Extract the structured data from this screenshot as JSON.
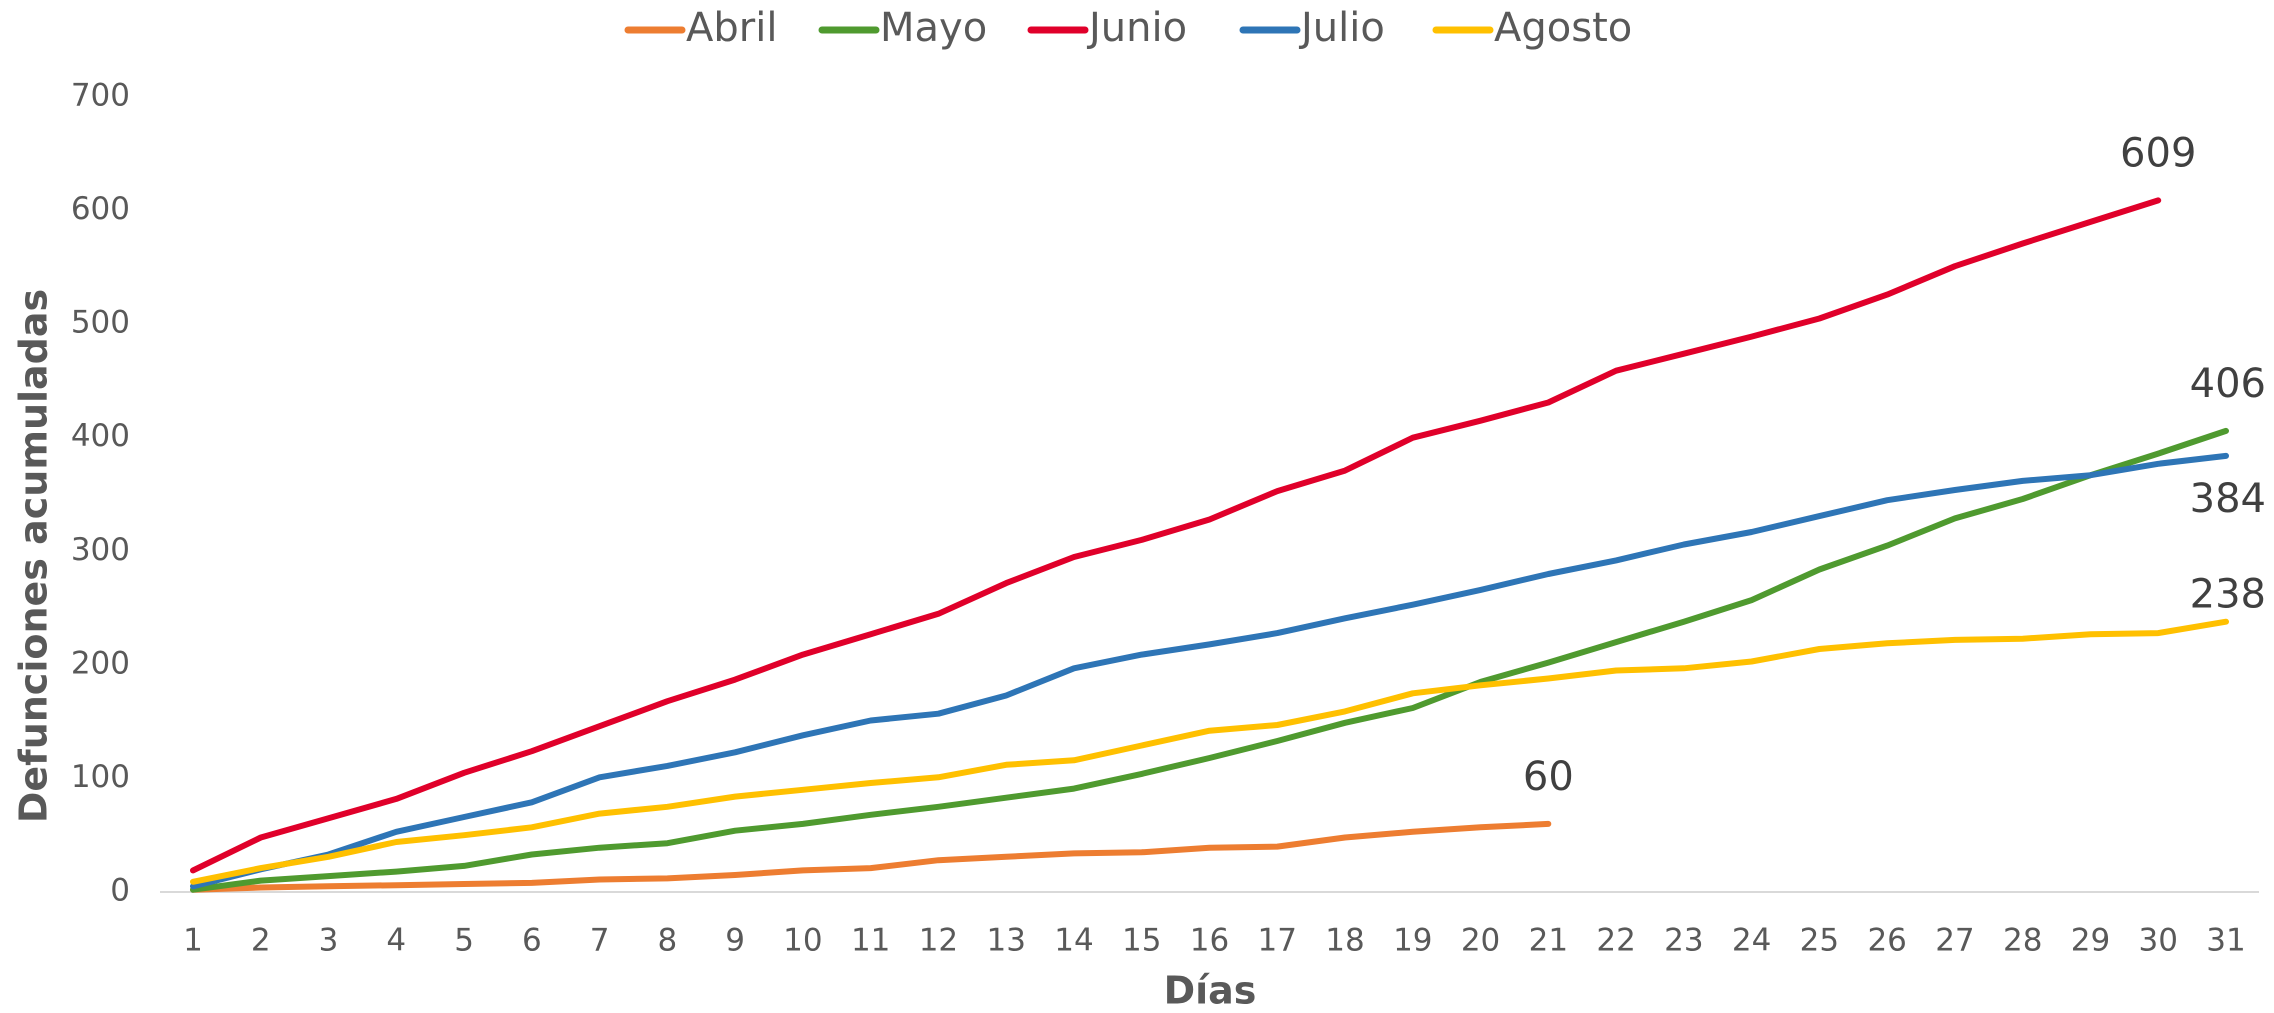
{
  "chart_data": {
    "type": "line",
    "xlabel": "Días",
    "ylabel": "Defunciones acumuladas",
    "categories": [
      1,
      2,
      3,
      4,
      5,
      6,
      7,
      8,
      9,
      10,
      11,
      12,
      13,
      14,
      15,
      16,
      17,
      18,
      19,
      20,
      21,
      22,
      23,
      24,
      25,
      26,
      27,
      28,
      29,
      30,
      31
    ],
    "ylim": [
      0,
      700
    ],
    "yticks": [
      0,
      100,
      200,
      300,
      400,
      500,
      600,
      700
    ],
    "legend": "top",
    "grid": false,
    "series": [
      {
        "name": "Abril",
        "color": "#ed7d31",
        "values": [
          2,
          4,
          5,
          6,
          7,
          8,
          11,
          12,
          15,
          19,
          21,
          28,
          31,
          34,
          35,
          39,
          40,
          48,
          53,
          57,
          60,
          null,
          null,
          null,
          null,
          null,
          null,
          null,
          null,
          null,
          null
        ]
      },
      {
        "name": "Mayo",
        "color": "#4f9a2f",
        "values": [
          2,
          10,
          14,
          18,
          23,
          33,
          39,
          43,
          54,
          60,
          68,
          75,
          83,
          91,
          104,
          118,
          133,
          149,
          162,
          185,
          202,
          220,
          238,
          257,
          284,
          305,
          329,
          346,
          367,
          386,
          406
        ]
      },
      {
        "name": "Junio",
        "color": "#e0002a",
        "values": [
          19,
          48,
          65,
          82,
          105,
          124,
          146,
          168,
          187,
          209,
          227,
          245,
          272,
          295,
          310,
          328,
          353,
          371,
          400,
          415,
          431,
          459,
          474,
          489,
          505,
          526,
          551,
          571,
          590,
          609,
          null
        ]
      },
      {
        "name": "Julio",
        "color": "#2e75b6",
        "values": [
          5,
          20,
          33,
          53,
          66,
          79,
          101,
          111,
          123,
          138,
          151,
          157,
          173,
          197,
          209,
          218,
          228,
          241,
          253,
          266,
          280,
          292,
          306,
          317,
          331,
          345,
          354,
          362,
          367,
          377,
          384
        ]
      },
      {
        "name": "Agosto",
        "color": "#ffc000",
        "values": [
          9,
          21,
          31,
          44,
          50,
          57,
          69,
          75,
          84,
          90,
          96,
          101,
          112,
          116,
          129,
          142,
          147,
          159,
          175,
          182,
          188,
          195,
          197,
          203,
          214,
          219,
          222,
          223,
          227,
          228,
          238
        ]
      }
    ]
  }
}
